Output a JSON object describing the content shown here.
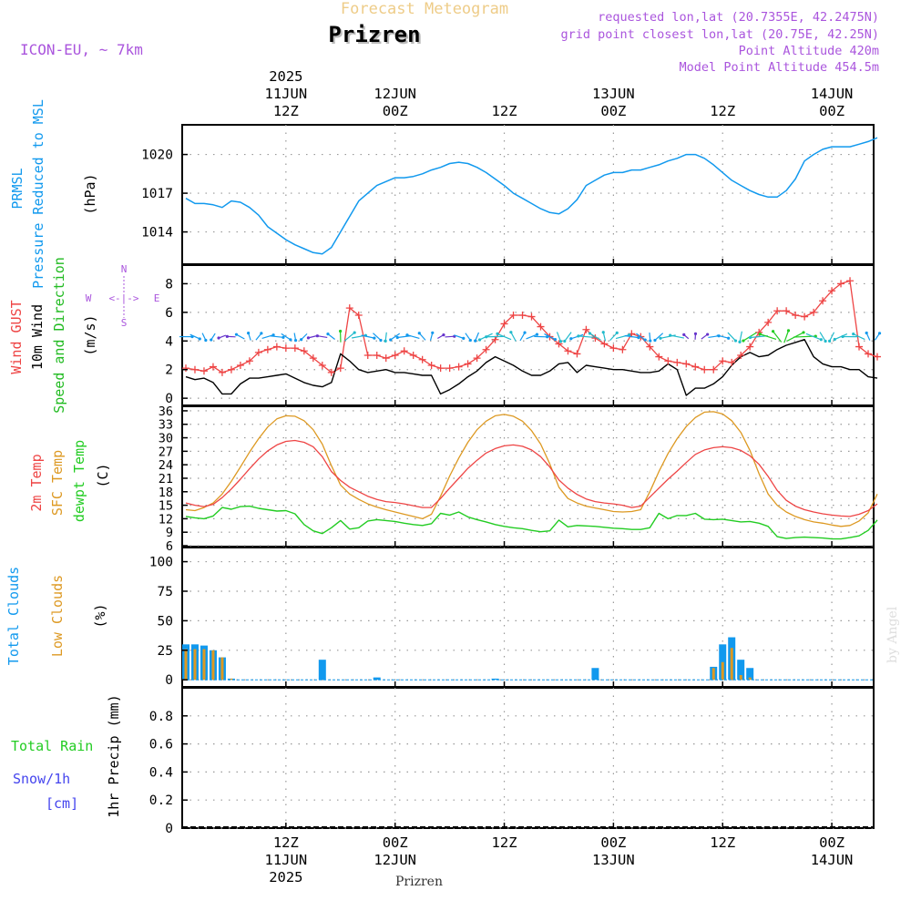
{
  "header": {
    "suptitle": "Forecast Meteogram",
    "location": "Prizren",
    "model": "ICON-EU, ~ 7km",
    "requested": "requested lon,lat (20.7355E, 42.2475N)",
    "grid_point": "grid point closest lon,lat (20.75E, 42.25N)",
    "point_altitude": "Point Altitude 420m",
    "model_altitude": "Model Point Altitude 454.5m",
    "footer_location": "Prizren",
    "watermark": "by Angel"
  },
  "colors": {
    "pressure": "#1199ee",
    "gust": "#ee4444",
    "wind": "#000000",
    "direction": "#22bb22",
    "temp2m": "#ee4444",
    "sfc_temp": "#dd9922",
    "dewpoint": "#22cc22",
    "total_clouds": "#1199ee",
    "low_clouds": "#dd9922",
    "rain": "#22cc22",
    "snow": "#4444ee",
    "header_purple": "#aa55dd",
    "suptitle": "#eecc88"
  },
  "panel_labels": {
    "pressure": [
      "PRMSL",
      "Pressure Reduced to MSL"
    ],
    "pressure_unit": "(hPa)",
    "wind": [
      "Wind GUST",
      "10m Wind",
      "Speed and Direction"
    ],
    "wind_unit": "(m/s)",
    "temp": [
      "2m Temp",
      "SFC Temp",
      "dewpt Temp"
    ],
    "temp_unit": "(C)",
    "clouds": [
      "Total Clouds",
      "Low Clouds"
    ],
    "clouds_unit": "(%)",
    "precip_legend": [
      "Total  Rain",
      "Snow/1h",
      "[cm]"
    ],
    "precip_unit": "1hr Precip (mm)",
    "compass": {
      "n": "N",
      "s": "S",
      "w": "W",
      "e": "E",
      "arrow": "<-|->"
    }
  },
  "time_axis": {
    "top_labels": [
      {
        "hour": 12,
        "lines": [
          "2025",
          "11JUN",
          "12Z"
        ]
      },
      {
        "hour": 24,
        "lines": [
          "12JUN",
          "00Z"
        ]
      },
      {
        "hour": 36,
        "lines": [
          "12Z"
        ]
      },
      {
        "hour": 48,
        "lines": [
          "13JUN",
          "00Z"
        ]
      },
      {
        "hour": 60,
        "lines": [
          "12Z"
        ]
      },
      {
        "hour": 72,
        "lines": [
          "14JUN",
          "00Z"
        ]
      }
    ],
    "bottom_labels": [
      {
        "hour": 12,
        "lines": [
          "12Z",
          "11JUN",
          "2025"
        ]
      },
      {
        "hour": 24,
        "lines": [
          "00Z",
          "12JUN"
        ]
      },
      {
        "hour": 36,
        "lines": [
          "12Z"
        ]
      },
      {
        "hour": 48,
        "lines": [
          "00Z",
          "13JUN"
        ]
      },
      {
        "hour": 60,
        "lines": [
          "12Z"
        ]
      },
      {
        "hour": 72,
        "lines": [
          "00Z",
          "14JUN"
        ]
      }
    ]
  },
  "chart_data": [
    {
      "type": "line",
      "panel": "pressure",
      "ylabel": "(hPa)",
      "ylim": [
        1011.5,
        1022.3
      ],
      "yticks": [
        1014,
        1017,
        1020
      ],
      "x_hours": [
        1,
        2,
        3,
        4,
        5,
        6,
        7,
        8,
        9,
        10,
        11,
        12,
        13,
        14,
        15,
        16,
        17,
        18,
        19,
        20,
        21,
        22,
        23,
        24,
        25,
        26,
        27,
        28,
        29,
        30,
        31,
        32,
        33,
        34,
        35,
        36,
        37,
        38,
        39,
        40,
        41,
        42,
        43,
        44,
        45,
        46,
        47,
        48,
        49,
        50,
        51,
        52,
        53,
        54,
        55,
        56,
        57,
        58,
        59,
        60,
        61,
        62,
        63,
        64,
        65,
        66,
        67,
        68,
        69,
        70,
        71,
        72,
        73,
        74,
        75,
        76,
        77
      ],
      "series": [
        {
          "values": [
            1016.6,
            1016.2,
            1016.2,
            1016.1,
            1015.9,
            1016.4,
            1016.3,
            1015.9,
            1015.3,
            1014.4,
            1013.9,
            1013.4,
            1013.0,
            1012.7,
            1012.4,
            1012.3,
            1012.8,
            1014.0,
            1015.2,
            1016.4,
            1017.0,
            1017.6,
            1017.9,
            1018.2,
            1018.2,
            1018.3,
            1018.5,
            1018.8,
            1019.0,
            1019.3,
            1019.4,
            1019.3,
            1019.0,
            1018.6,
            1018.1,
            1017.6,
            1017.0,
            1016.6,
            1016.2,
            1015.8,
            1015.5,
            1015.4,
            1015.8,
            1016.5,
            1017.6,
            1018.0,
            1018.4,
            1018.6,
            1018.6,
            1018.8,
            1018.8,
            1019.0,
            1019.2,
            1019.5,
            1019.7,
            1020.0,
            1020.0,
            1019.7,
            1019.2,
            1018.6,
            1018.0,
            1017.6,
            1017.2,
            1016.9,
            1016.7,
            1016.7,
            1017.2,
            1018.1,
            1019.5,
            1020.0,
            1020.4,
            1020.6,
            1020.6,
            1020.6,
            1020.8,
            1021.0,
            1021.3
          ]
        }
      ]
    },
    {
      "type": "line",
      "panel": "wind",
      "ylabel": "(m/s)",
      "ylim": [
        -0.5,
        9.3
      ],
      "yticks": [
        0,
        2,
        4,
        6,
        8
      ],
      "x_hours": [
        1,
        2,
        3,
        4,
        5,
        6,
        7,
        8,
        9,
        10,
        11,
        12,
        13,
        14,
        15,
        16,
        17,
        18,
        19,
        20,
        21,
        22,
        23,
        24,
        25,
        26,
        27,
        28,
        29,
        30,
        31,
        32,
        33,
        34,
        35,
        36,
        37,
        38,
        39,
        40,
        41,
        42,
        43,
        44,
        45,
        46,
        47,
        48,
        49,
        50,
        51,
        52,
        53,
        54,
        55,
        56,
        57,
        58,
        59,
        60,
        61,
        62,
        63,
        64,
        65,
        66,
        67,
        68,
        69,
        70,
        71,
        72,
        73,
        74,
        75,
        76,
        77
      ],
      "series": [
        {
          "name": "Wind GUST",
          "values": [
            2.1,
            2.0,
            1.9,
            2.2,
            1.8,
            2.0,
            2.3,
            2.6,
            3.2,
            3.4,
            3.6,
            3.5,
            3.5,
            3.3,
            2.8,
            2.3,
            1.8,
            2.1,
            6.3,
            5.8,
            3.0,
            3.0,
            2.8,
            3.0,
            3.3,
            3.0,
            2.7,
            2.3,
            2.1,
            2.1,
            2.2,
            2.4,
            2.8,
            3.4,
            4.1,
            5.2,
            5.8,
            5.8,
            5.7,
            5.0,
            4.3,
            3.8,
            3.3,
            3.1,
            4.8,
            4.2,
            3.8,
            3.5,
            3.4,
            4.5,
            4.3,
            3.6,
            2.9,
            2.6,
            2.5,
            2.4,
            2.2,
            2.0,
            2.0,
            2.6,
            2.5,
            3.0,
            3.6,
            4.6,
            5.3,
            6.1,
            6.1,
            5.8,
            5.7,
            6.0,
            6.8,
            7.5,
            8.0,
            8.2,
            3.6,
            3.1,
            2.9
          ]
        },
        {
          "name": "10m Wind",
          "values": [
            1.5,
            1.3,
            1.4,
            1.1,
            0.3,
            0.3,
            1.0,
            1.4,
            1.4,
            1.5,
            1.6,
            1.7,
            1.4,
            1.1,
            0.9,
            0.8,
            1.1,
            3.1,
            2.6,
            2.0,
            1.8,
            1.9,
            2.0,
            1.8,
            1.8,
            1.7,
            1.6,
            1.6,
            0.3,
            0.6,
            1.0,
            1.5,
            1.9,
            2.5,
            2.9,
            2.6,
            2.3,
            1.9,
            1.6,
            1.6,
            1.9,
            2.4,
            2.5,
            1.8,
            2.3,
            2.2,
            2.1,
            2.0,
            2.0,
            1.9,
            1.8,
            1.8,
            1.9,
            2.4,
            2.0,
            0.2,
            0.7,
            0.7,
            1.0,
            1.5,
            2.3,
            2.9,
            3.2,
            2.9,
            3.0,
            3.4,
            3.7,
            3.9,
            4.1,
            2.9,
            2.4,
            2.2,
            2.2,
            2.0,
            2.0,
            1.5,
            1.4
          ]
        }
      ]
    },
    {
      "type": "line",
      "panel": "temp",
      "ylabel": "(C)",
      "ylim": [
        5.8,
        37
      ],
      "yticks": [
        6,
        9,
        12,
        15,
        18,
        21,
        24,
        27,
        30,
        33,
        36
      ],
      "x_hours": [
        1,
        2,
        3,
        4,
        5,
        6,
        7,
        8,
        9,
        10,
        11,
        12,
        13,
        14,
        15,
        16,
        17,
        18,
        19,
        20,
        21,
        22,
        23,
        24,
        25,
        26,
        27,
        28,
        29,
        30,
        31,
        32,
        33,
        34,
        35,
        36,
        37,
        38,
        39,
        40,
        41,
        42,
        43,
        44,
        45,
        46,
        47,
        48,
        49,
        50,
        51,
        52,
        53,
        54,
        55,
        56,
        57,
        58,
        59,
        60,
        61,
        62,
        63,
        64,
        65,
        66,
        67,
        68,
        69,
        70,
        71,
        72,
        73,
        74,
        75,
        76,
        77
      ],
      "series": [
        {
          "name": "2m Temp",
          "values": [
            15.5,
            15.0,
            14.7,
            15.2,
            16.7,
            18.6,
            20.8,
            23.1,
            25.3,
            27.1,
            28.4,
            29.2,
            29.4,
            29.0,
            28.0,
            25.8,
            22.5,
            20.5,
            19.0,
            18.0,
            17.0,
            16.3,
            15.8,
            15.6,
            15.3,
            14.9,
            14.5,
            14.5,
            16.5,
            18.8,
            21.0,
            23.2,
            25.0,
            26.6,
            27.6,
            28.2,
            28.4,
            28.1,
            27.3,
            25.8,
            23.5,
            20.6,
            18.8,
            17.4,
            16.4,
            15.8,
            15.5,
            15.3,
            15.0,
            14.5,
            14.8,
            16.8,
            18.8,
            20.8,
            22.6,
            24.5,
            26.3,
            27.3,
            27.8,
            28.0,
            27.8,
            27.2,
            26.0,
            24.1,
            21.4,
            18.3,
            16.1,
            14.8,
            14.0,
            13.5,
            13.1,
            12.8,
            12.6,
            12.5,
            13.0,
            13.8,
            15.3
          ]
        },
        {
          "name": "SFC Temp",
          "values": [
            14.0,
            13.8,
            14.5,
            15.5,
            17.5,
            20.3,
            23.5,
            26.8,
            29.8,
            32.4,
            34.2,
            34.9,
            34.8,
            33.8,
            31.8,
            28.6,
            23.8,
            19.5,
            17.5,
            16.3,
            15.3,
            14.6,
            14.0,
            13.5,
            13.0,
            12.5,
            12.0,
            13.0,
            17.0,
            21.5,
            25.5,
            29.0,
            31.8,
            33.7,
            34.9,
            35.2,
            34.8,
            33.7,
            31.6,
            28.6,
            24.2,
            19.0,
            16.5,
            15.5,
            14.8,
            14.4,
            14.0,
            13.6,
            13.5,
            13.6,
            14.0,
            18.0,
            22.5,
            26.5,
            29.8,
            32.5,
            34.5,
            35.7,
            35.8,
            35.3,
            33.8,
            31.2,
            27.2,
            22.0,
            17.5,
            15.0,
            13.5,
            12.5,
            11.8,
            11.3,
            11.0,
            10.6,
            10.3,
            10.5,
            11.5,
            13.3,
            17.5
          ]
        },
        {
          "name": "dewpt Temp",
          "values": [
            12.5,
            12.2,
            12.0,
            12.6,
            14.5,
            14.1,
            14.7,
            14.8,
            14.3,
            14.0,
            13.7,
            13.8,
            13.1,
            10.7,
            9.3,
            8.7,
            10.0,
            11.6,
            9.7,
            10.0,
            11.5,
            11.8,
            11.6,
            11.4,
            11.0,
            10.7,
            10.5,
            10.9,
            13.2,
            12.8,
            13.5,
            12.4,
            11.8,
            11.3,
            10.7,
            10.3,
            10.0,
            9.8,
            9.4,
            9.1,
            9.3,
            11.7,
            10.2,
            10.5,
            10.4,
            10.3,
            10.1,
            9.9,
            9.8,
            9.6,
            9.6,
            10.0,
            13.2,
            12.0,
            12.7,
            12.7,
            13.2,
            11.9,
            11.8,
            11.9,
            11.6,
            11.3,
            11.4,
            11.0,
            10.3,
            8.0,
            7.6,
            7.8,
            7.9,
            7.8,
            7.7,
            7.5,
            7.5,
            7.8,
            8.2,
            9.4,
            11.7
          ]
        }
      ]
    },
    {
      "type": "bar",
      "panel": "clouds",
      "ylabel": "(%)",
      "ylim": [
        -6,
        112
      ],
      "yticks": [
        0,
        25,
        50,
        75,
        100
      ],
      "x_hours": [
        1,
        2,
        3,
        4,
        5,
        6,
        7,
        8,
        9,
        10,
        11,
        12,
        13,
        14,
        15,
        16,
        17,
        18,
        19,
        20,
        21,
        22,
        23,
        24,
        25,
        26,
        27,
        28,
        29,
        30,
        31,
        32,
        33,
        34,
        35,
        36,
        37,
        38,
        39,
        40,
        41,
        42,
        43,
        44,
        45,
        46,
        47,
        48,
        49,
        50,
        51,
        52,
        53,
        54,
        55,
        56,
        57,
        58,
        59,
        60,
        61,
        62,
        63,
        64,
        65,
        66,
        67,
        68,
        69,
        70,
        71,
        72,
        73,
        74,
        75,
        76,
        77
      ],
      "series": [
        {
          "name": "Total Clouds",
          "values": [
            30,
            30,
            29,
            25,
            19,
            1,
            0,
            0,
            0,
            0,
            0,
            0,
            0,
            0,
            0,
            17,
            0,
            0,
            0,
            0,
            0,
            2,
            0,
            0,
            0,
            0,
            0,
            0,
            0,
            0,
            0,
            0,
            0,
            0,
            1,
            0,
            0,
            0,
            0,
            0,
            0,
            0,
            0,
            0,
            0,
            10,
            0,
            0,
            0,
            0,
            0,
            0,
            0,
            0,
            0,
            0,
            0,
            0,
            11,
            30,
            36,
            17,
            10,
            0,
            0,
            0,
            0,
            0,
            0,
            0,
            0,
            0,
            0,
            0,
            0,
            0,
            0
          ]
        },
        {
          "name": "Low Clouds",
          "values": [
            26,
            26,
            26,
            25,
            19,
            1,
            0,
            0,
            0,
            0,
            0,
            0,
            0,
            0,
            0,
            0,
            0,
            0,
            0,
            0,
            0,
            0,
            0,
            0,
            0,
            0,
            0,
            0,
            0,
            0,
            0,
            0,
            0,
            0,
            0,
            0,
            0,
            0,
            0,
            0,
            0,
            0,
            0,
            0,
            0,
            0,
            0,
            0,
            0,
            0,
            0,
            0,
            0,
            0,
            0,
            0,
            0,
            0,
            10,
            15,
            27,
            4,
            2,
            0,
            0,
            0,
            0,
            0,
            0,
            0,
            0,
            0,
            0,
            0,
            0,
            0,
            0
          ]
        }
      ]
    },
    {
      "type": "bar",
      "panel": "precip",
      "ylabel": "1hr Precip (mm)",
      "ylim": [
        0,
        1.0
      ],
      "yticks": [
        0,
        0.2,
        0.4,
        0.6,
        0.8
      ],
      "x_hours": [
        1,
        77
      ],
      "series": [
        {
          "name": "Total Rain",
          "values": [
            0,
            0
          ]
        }
      ]
    }
  ]
}
